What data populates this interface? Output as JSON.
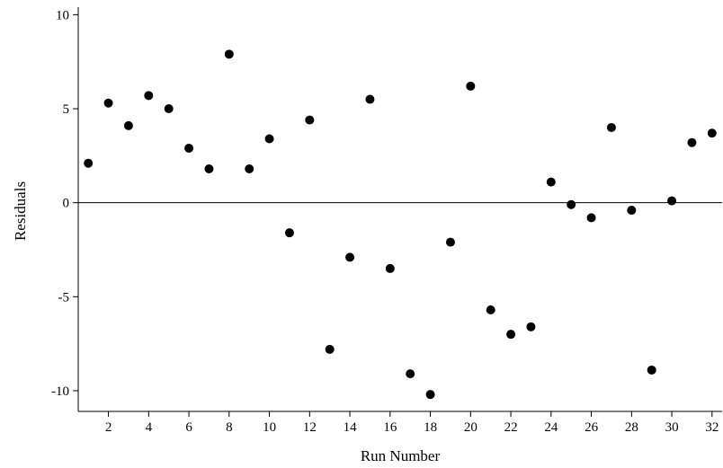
{
  "chart_data": {
    "type": "scatter",
    "xlabel": "Run Number",
    "ylabel": "Residuals",
    "xlim": [
      0.5,
      32.5
    ],
    "ylim": [
      -11.1,
      10.4
    ],
    "xticks": [
      2,
      4,
      6,
      8,
      10,
      12,
      14,
      16,
      18,
      20,
      22,
      24,
      26,
      28,
      30,
      32
    ],
    "yticks": [
      -10,
      -5,
      0,
      5,
      10
    ],
    "reference_line_y": 0,
    "grid": false,
    "legend": "none",
    "marker_color": "#000000",
    "points": [
      {
        "x": 1,
        "y": 2.1
      },
      {
        "x": 2,
        "y": 5.3
      },
      {
        "x": 3,
        "y": 4.1
      },
      {
        "x": 4,
        "y": 5.7
      },
      {
        "x": 5,
        "y": 5.0
      },
      {
        "x": 6,
        "y": 2.9
      },
      {
        "x": 7,
        "y": 1.8
      },
      {
        "x": 8,
        "y": 7.9
      },
      {
        "x": 9,
        "y": 1.8
      },
      {
        "x": 10,
        "y": 3.4
      },
      {
        "x": 11,
        "y": -1.6
      },
      {
        "x": 12,
        "y": 4.4
      },
      {
        "x": 13,
        "y": -7.8
      },
      {
        "x": 14,
        "y": -2.9
      },
      {
        "x": 15,
        "y": 5.5
      },
      {
        "x": 16,
        "y": -3.5
      },
      {
        "x": 17,
        "y": -9.1
      },
      {
        "x": 18,
        "y": -10.2
      },
      {
        "x": 19,
        "y": -2.1
      },
      {
        "x": 20,
        "y": 6.2
      },
      {
        "x": 21,
        "y": -5.7
      },
      {
        "x": 22,
        "y": -7.0
      },
      {
        "x": 23,
        "y": -6.6
      },
      {
        "x": 24,
        "y": 1.1
      },
      {
        "x": 25,
        "y": -0.1
      },
      {
        "x": 26,
        "y": -0.8
      },
      {
        "x": 27,
        "y": 4.0
      },
      {
        "x": 28,
        "y": -0.4
      },
      {
        "x": 29,
        "y": -8.9
      },
      {
        "x": 30,
        "y": 0.1
      },
      {
        "x": 31,
        "y": 3.2
      },
      {
        "x": 32,
        "y": 3.7
      }
    ]
  }
}
